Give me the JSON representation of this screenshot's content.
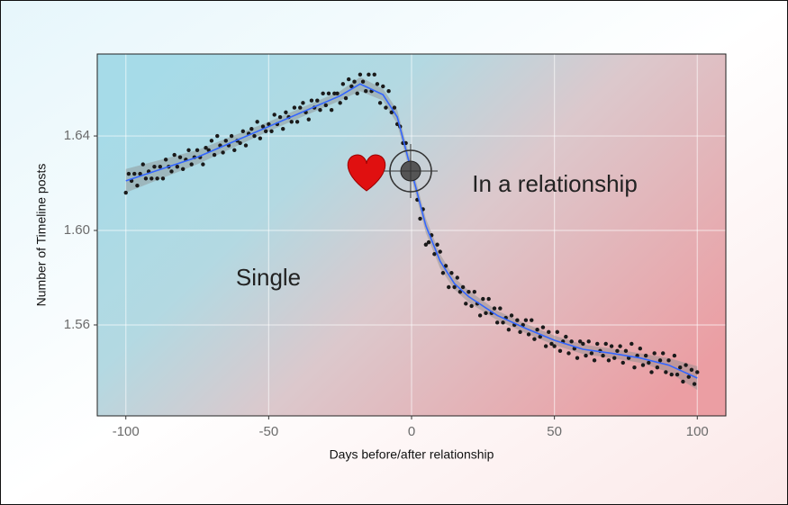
{
  "chart_data": {
    "type": "scatter",
    "xlabel": "Days before/after relationship",
    "ylabel": "Number of Timeline posts",
    "annotations": [
      "Single",
      "In a relationship"
    ],
    "xlim": [
      -110,
      110
    ],
    "ylim": [
      1.5215,
      1.6747
    ],
    "xticks": [
      -100,
      -50,
      0,
      50,
      100
    ],
    "yticks": [
      1.56,
      {
        "value": 1.6,
        "label": "1.60"
      },
      1.64
    ],
    "grid": true,
    "point_color": "#1a1a1a",
    "x": [
      -100,
      -99,
      -98,
      -97,
      -96,
      -95,
      -94,
      -93,
      -92,
      -91,
      -90,
      -89,
      -88,
      -87,
      -86,
      -85,
      -84,
      -83,
      -82,
      -81,
      -80,
      -79,
      -78,
      -77,
      -76,
      -75,
      -74,
      -73,
      -72,
      -71,
      -70,
      -69,
      -68,
      -67,
      -66,
      -65,
      -64,
      -63,
      -62,
      -61,
      -60,
      -59,
      -58,
      -57,
      -56,
      -55,
      -54,
      -53,
      -52,
      -51,
      -50,
      -49,
      -48,
      -47,
      -46,
      -45,
      -44,
      -43,
      -42,
      -41,
      -40,
      -39,
      -38,
      -37,
      -36,
      -35,
      -34,
      -33,
      -32,
      -31,
      -30,
      -29,
      -28,
      -27,
      -26,
      -25,
      -24,
      -23,
      -22,
      -21,
      -20,
      -19,
      -18,
      -17,
      -16,
      -15,
      -14,
      -13,
      -12,
      -11,
      -10,
      -9,
      -8,
      -7,
      -6,
      -5,
      -4,
      -3,
      -2,
      -1,
      0,
      1,
      2,
      3,
      4,
      5,
      6,
      7,
      8,
      9,
      10,
      11,
      12,
      13,
      14,
      15,
      16,
      17,
      18,
      19,
      20,
      21,
      22,
      23,
      24,
      25,
      26,
      27,
      28,
      29,
      30,
      31,
      32,
      33,
      34,
      35,
      36,
      37,
      38,
      39,
      40,
      41,
      42,
      43,
      44,
      45,
      46,
      47,
      48,
      49,
      50,
      51,
      52,
      53,
      54,
      55,
      56,
      57,
      58,
      59,
      60,
      61,
      62,
      63,
      64,
      65,
      66,
      67,
      68,
      69,
      70,
      71,
      72,
      73,
      74,
      75,
      76,
      77,
      78,
      79,
      80,
      81,
      82,
      83,
      84,
      85,
      86,
      87,
      88,
      89,
      90,
      91,
      92,
      93,
      94,
      95,
      96,
      97,
      98,
      99,
      100
    ],
    "values": [
      1.616,
      1.624,
      1.621,
      1.624,
      1.619,
      1.624,
      1.628,
      1.622,
      1.625,
      1.622,
      1.627,
      1.622,
      1.627,
      1.622,
      1.63,
      1.627,
      1.625,
      1.632,
      1.627,
      1.631,
      1.626,
      1.63,
      1.634,
      1.628,
      1.631,
      1.634,
      1.631,
      1.628,
      1.635,
      1.634,
      1.638,
      1.632,
      1.64,
      1.636,
      1.633,
      1.638,
      1.636,
      1.64,
      1.634,
      1.638,
      1.637,
      1.642,
      1.636,
      1.641,
      1.643,
      1.64,
      1.646,
      1.639,
      1.644,
      1.642,
      1.645,
      1.642,
      1.649,
      1.645,
      1.648,
      1.643,
      1.65,
      1.648,
      1.646,
      1.652,
      1.646,
      1.652,
      1.654,
      1.65,
      1.647,
      1.655,
      1.652,
      1.655,
      1.651,
      1.658,
      1.653,
      1.658,
      1.651,
      1.658,
      1.658,
      1.654,
      1.662,
      1.656,
      1.664,
      1.661,
      1.663,
      1.658,
      1.666,
      1.663,
      1.659,
      1.666,
      1.659,
      1.666,
      1.662,
      1.654,
      1.661,
      1.652,
      1.659,
      1.65,
      1.652,
      1.645,
      1.644,
      1.637,
      1.637,
      1.626,
      1.625,
      1.623,
      1.613,
      1.605,
      1.609,
      1.594,
      1.595,
      1.598,
      1.59,
      1.594,
      1.591,
      1.582,
      1.585,
      1.576,
      1.582,
      1.576,
      1.58,
      1.574,
      1.576,
      1.569,
      1.574,
      1.568,
      1.574,
      1.569,
      1.564,
      1.571,
      1.565,
      1.571,
      1.565,
      1.567,
      1.561,
      1.567,
      1.561,
      1.563,
      1.558,
      1.564,
      1.56,
      1.562,
      1.557,
      1.56,
      1.562,
      1.556,
      1.562,
      1.554,
      1.558,
      1.555,
      1.559,
      1.551,
      1.557,
      1.552,
      1.551,
      1.557,
      1.549,
      1.553,
      1.555,
      1.548,
      1.553,
      1.55,
      1.546,
      1.553,
      1.552,
      1.547,
      1.553,
      1.548,
      1.545,
      1.552,
      1.549,
      1.547,
      1.552,
      1.545,
      1.551,
      1.546,
      1.549,
      1.551,
      1.544,
      1.549,
      1.546,
      1.552,
      1.542,
      1.547,
      1.55,
      1.543,
      1.547,
      1.544,
      1.54,
      1.548,
      1.542,
      1.545,
      1.548,
      1.54,
      1.545,
      1.539,
      1.547,
      1.539,
      1.542,
      1.536,
      1.543,
      1.538,
      1.541,
      1.535,
      1.54
    ],
    "smooth": {
      "color": "#3366ff",
      "band_color": "#8c8c8c",
      "x": [
        -100,
        -75,
        -50,
        -25,
        -18,
        -10,
        -5,
        0,
        5,
        10,
        15,
        20,
        30,
        40,
        50,
        60,
        70,
        80,
        90,
        100
      ],
      "values": [
        1.621,
        1.631,
        1.644,
        1.657,
        1.662,
        1.6575,
        1.648,
        1.625,
        1.602,
        1.587,
        1.5775,
        1.572,
        1.564,
        1.5585,
        1.5535,
        1.5497,
        1.548,
        1.546,
        1.543,
        1.5375
      ],
      "lower": [
        1.616,
        1.628,
        1.642,
        1.655,
        1.659,
        1.655,
        1.645,
        1.622,
        1.599,
        1.584,
        1.575,
        1.5695,
        1.562,
        1.5565,
        1.5515,
        1.5477,
        1.546,
        1.544,
        1.54,
        1.5325
      ],
      "upper": [
        1.626,
        1.634,
        1.646,
        1.659,
        1.665,
        1.66,
        1.651,
        1.628,
        1.605,
        1.59,
        1.58,
        1.5745,
        1.566,
        1.5605,
        1.5555,
        1.5517,
        1.55,
        1.548,
        1.546,
        1.5425
      ]
    }
  }
}
